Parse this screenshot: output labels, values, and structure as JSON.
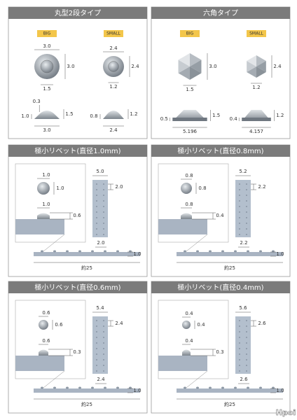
{
  "round": {
    "title": "丸型2段タイプ",
    "big": {
      "tag": "BIG",
      "top": "3.0",
      "right": "3.0",
      "bottom": "1.5",
      "side_top": "0.3",
      "side_left": "1.0",
      "side_right": "1.5",
      "side_bottom": "3.0"
    },
    "small": {
      "tag": "SMALL",
      "top": "2.4",
      "right": "2.4",
      "bottom": "1.2",
      "side_left": "0.8",
      "side_right": "1.2",
      "side_bottom": "2.4"
    }
  },
  "hex": {
    "title": "六角タイプ",
    "big": {
      "tag": "BIG",
      "right": "3.0",
      "bottom": "1.5",
      "side_left": "0.5",
      "side_right": "1.5",
      "side_bottom": "5.196"
    },
    "small": {
      "tag": "SMALL",
      "right": "2.4",
      "bottom": "1.2",
      "side_left": "0.4",
      "side_right": "1.2",
      "side_bottom": "4.157"
    }
  },
  "rivets": [
    {
      "title": "極小リベット(直径1.0mm)",
      "head_w": "1.0",
      "head_h": "1.0",
      "side_w": "1.0",
      "side_h": "0.6",
      "pitch": "5.0",
      "row": "2.0",
      "strip_pitch": "2.0",
      "strip_h": "1.0",
      "length": "約25"
    },
    {
      "title": "極小リベット(直径0.8mm)",
      "head_w": "0.8",
      "head_h": "0.8",
      "side_w": "0.8",
      "side_h": "0.4",
      "pitch": "5.2",
      "row": "2.2",
      "strip_pitch": "2.2",
      "strip_h": "1.0",
      "length": "約25"
    },
    {
      "title": "極小リベット(直径0.6mm)",
      "head_w": "0.6",
      "head_h": "0.6",
      "side_w": "0.6",
      "side_h": "0.3",
      "pitch": "5.4",
      "row": "2.4",
      "strip_pitch": "2.4",
      "strip_h": "1.0",
      "length": "約25"
    },
    {
      "title": "極小リベット(直径0.4mm)",
      "head_w": "0.4",
      "head_h": "0.4",
      "side_w": "0.4",
      "side_h": "0.3",
      "pitch": "5.6",
      "row": "2.6",
      "strip_pitch": "2.6",
      "strip_h": "1.0",
      "length": "約25"
    }
  ],
  "watermark": "Hpoi"
}
